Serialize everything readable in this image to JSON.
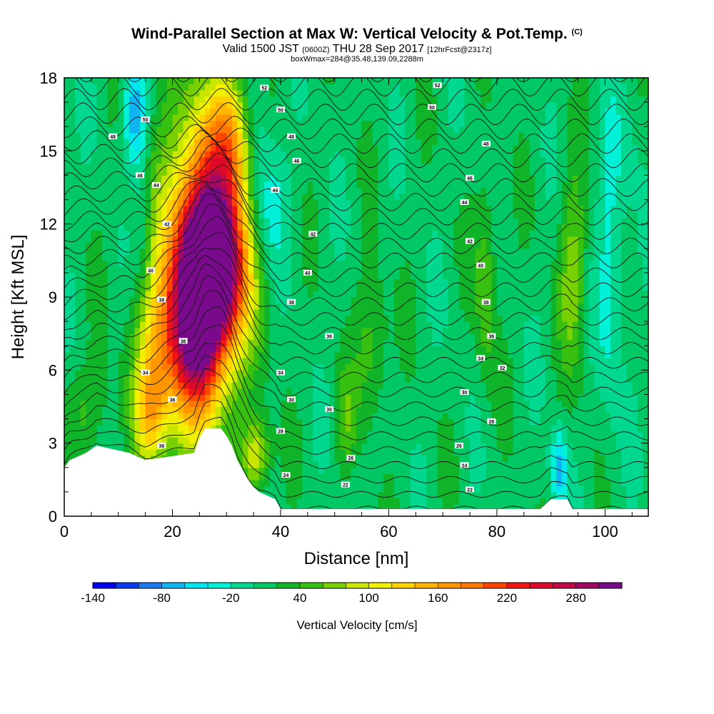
{
  "title": {
    "main": "Wind-Parallel Section at Max W: Vertical Velocity & Pot.Temp.",
    "main_suffix": "(C)",
    "valid_prefix": "Valid 1500 JST",
    "valid_zulu": "(0600Z)",
    "valid_date": "THU 28 Sep 2017",
    "forecast": "[12hrFcst@2317z]",
    "box_info": "boxWmax=284@35.48,139.09,2288m"
  },
  "chart_data": {
    "type": "heatmap",
    "xlabel": "Distance [nm]",
    "ylabel": "Height [Kft MSL]",
    "colorbar_label": "Vertical Velocity [cm/s]",
    "xlim": [
      0,
      108
    ],
    "ylim": [
      0,
      18
    ],
    "x_ticks": [
      0,
      20,
      40,
      60,
      80,
      100
    ],
    "y_ticks": [
      0,
      3,
      6,
      9,
      12,
      15,
      18
    ],
    "colorbar": {
      "min": -140,
      "max": 320,
      "step": 20,
      "tick_values": [
        -140,
        -80,
        -20,
        40,
        100,
        160,
        220,
        280
      ],
      "tick_labels": [
        "-140",
        "-80",
        "-20",
        "40",
        "100",
        "160",
        "220",
        "280"
      ],
      "colors": [
        "#0000ee",
        "#0a3cf0",
        "#1878f0",
        "#10b4f0",
        "#00e6f0",
        "#00f0d8",
        "#00d890",
        "#00c864",
        "#10b428",
        "#38c010",
        "#78d000",
        "#c8e600",
        "#f0f000",
        "#ffd200",
        "#ffb400",
        "#ff9600",
        "#ff7800",
        "#ff4600",
        "#f01414",
        "#dc0a28",
        "#c00a46",
        "#a00a64",
        "#7a0a8c"
      ]
    },
    "background_velocity": 10,
    "velocity_features": [
      {
        "x": 27.5,
        "y": 10.2,
        "v": 300,
        "rx": 5.5,
        "ry": 3.2
      },
      {
        "x": 26,
        "y": 11.5,
        "v": 160,
        "rx": 8,
        "ry": 6
      },
      {
        "x": 24,
        "y": 7.5,
        "v": 200,
        "rx": 5,
        "ry": 4
      },
      {
        "x": 17,
        "y": 6.5,
        "v": 100,
        "rx": 4,
        "ry": 3
      },
      {
        "x": 16,
        "y": 4,
        "v": 90,
        "rx": 3,
        "ry": 2
      },
      {
        "x": 31,
        "y": 15.5,
        "v": 110,
        "rx": 4,
        "ry": 2.5
      },
      {
        "x": 35.5,
        "y": 2.5,
        "v": 90,
        "rx": 2.5,
        "ry": 1.5
      },
      {
        "x": 13,
        "y": 16.5,
        "v": -90,
        "rx": 2,
        "ry": 2
      },
      {
        "x": 14.5,
        "y": 12.5,
        "v": -30,
        "rx": 1.5,
        "ry": 3
      },
      {
        "x": 37,
        "y": 13,
        "v": -60,
        "rx": 4,
        "ry": 3
      },
      {
        "x": 35,
        "y": 16.5,
        "v": -40,
        "rx": 3,
        "ry": 2
      },
      {
        "x": 91.5,
        "y": 2,
        "v": -80,
        "rx": 1.5,
        "ry": 1.5
      },
      {
        "x": 101,
        "y": 10,
        "v": -40,
        "rx": 2.5,
        "ry": 6
      },
      {
        "x": 94,
        "y": 10,
        "v": 60,
        "rx": 2.5,
        "ry": 4
      },
      {
        "x": 78,
        "y": 9.5,
        "v": 50,
        "rx": 2,
        "ry": 4
      },
      {
        "x": 57,
        "y": 7,
        "v": 45,
        "rx": 3,
        "ry": 3
      },
      {
        "x": 52,
        "y": 4,
        "v": 40,
        "rx": 2,
        "ry": 2
      },
      {
        "x": 4,
        "y": 4.5,
        "v": 30,
        "rx": 5,
        "ry": 2
      },
      {
        "x": 104,
        "y": 15,
        "v": -15,
        "rx": 3,
        "ry": 3
      }
    ],
    "terrain": [
      [
        0,
        2.0
      ],
      [
        1,
        2.3
      ],
      [
        4,
        2.6
      ],
      [
        6,
        2.9
      ],
      [
        12,
        2.6
      ],
      [
        15,
        2.3
      ],
      [
        24,
        2.6
      ],
      [
        25,
        3.2
      ],
      [
        26,
        3.6
      ],
      [
        29,
        3.6
      ],
      [
        30,
        3.3
      ],
      [
        31,
        2.9
      ],
      [
        32,
        2.3
      ],
      [
        33,
        1.9
      ],
      [
        34,
        1.5
      ],
      [
        35,
        1.2
      ],
      [
        36,
        1.0
      ],
      [
        39,
        0.7
      ],
      [
        40,
        0.3
      ],
      [
        88,
        0.3
      ],
      [
        90,
        0.7
      ],
      [
        93,
        0.7
      ],
      [
        94,
        0.3
      ],
      [
        108,
        0.3
      ]
    ],
    "theta_contours": {
      "interval_c": 1,
      "base_level": 21,
      "surface_height": 0.3,
      "increment_height": 0.6,
      "count": 31,
      "labels": [
        {
          "x": 52,
          "y": 1.3,
          "text": "22"
        },
        {
          "x": 75,
          "y": 1.1,
          "text": "22"
        },
        {
          "x": 41,
          "y": 1.7,
          "text": "24"
        },
        {
          "x": 74,
          "y": 2.1,
          "text": "24"
        },
        {
          "x": 53,
          "y": 2.4,
          "text": "26"
        },
        {
          "x": 73,
          "y": 2.9,
          "text": "26"
        },
        {
          "x": 40,
          "y": 3.5,
          "text": "28"
        },
        {
          "x": 79,
          "y": 3.9,
          "text": "28"
        },
        {
          "x": 42,
          "y": 4.8,
          "text": "30"
        },
        {
          "x": 49,
          "y": 4.4,
          "text": "30"
        },
        {
          "x": 74,
          "y": 5.1,
          "text": "30"
        },
        {
          "x": 40,
          "y": 5.9,
          "text": "34"
        },
        {
          "x": 77,
          "y": 6.5,
          "text": "34"
        },
        {
          "x": 81,
          "y": 6.1,
          "text": "32"
        },
        {
          "x": 20,
          "y": 4.8,
          "text": "36"
        },
        {
          "x": 18,
          "y": 2.9,
          "text": "36"
        },
        {
          "x": 22,
          "y": 7.2,
          "text": "36"
        },
        {
          "x": 15,
          "y": 5.9,
          "text": "34"
        },
        {
          "x": 49,
          "y": 7.4,
          "text": "36"
        },
        {
          "x": 79,
          "y": 7.4,
          "text": "36"
        },
        {
          "x": 42,
          "y": 8.8,
          "text": "38"
        },
        {
          "x": 78,
          "y": 8.8,
          "text": "38"
        },
        {
          "x": 18,
          "y": 8.9,
          "text": "38"
        },
        {
          "x": 45,
          "y": 10.0,
          "text": "40"
        },
        {
          "x": 77,
          "y": 10.3,
          "text": "40"
        },
        {
          "x": 16,
          "y": 10.1,
          "text": "40"
        },
        {
          "x": 46,
          "y": 11.6,
          "text": "42"
        },
        {
          "x": 75,
          "y": 11.3,
          "text": "42"
        },
        {
          "x": 19,
          "y": 12.0,
          "text": "42"
        },
        {
          "x": 39,
          "y": 13.4,
          "text": "44"
        },
        {
          "x": 74,
          "y": 12.9,
          "text": "44"
        },
        {
          "x": 17,
          "y": 13.6,
          "text": "44"
        },
        {
          "x": 43,
          "y": 14.6,
          "text": "46"
        },
        {
          "x": 75,
          "y": 13.9,
          "text": "46"
        },
        {
          "x": 14,
          "y": 14.0,
          "text": "46"
        },
        {
          "x": 42,
          "y": 15.6,
          "text": "48"
        },
        {
          "x": 78,
          "y": 15.3,
          "text": "48"
        },
        {
          "x": 9,
          "y": 15.6,
          "text": "48"
        },
        {
          "x": 40,
          "y": 16.7,
          "text": "50"
        },
        {
          "x": 68,
          "y": 16.8,
          "text": "50"
        },
        {
          "x": 15,
          "y": 16.3,
          "text": "50"
        },
        {
          "x": 37,
          "y": 17.6,
          "text": "52"
        },
        {
          "x": 69,
          "y": 17.7,
          "text": "52"
        }
      ]
    }
  }
}
